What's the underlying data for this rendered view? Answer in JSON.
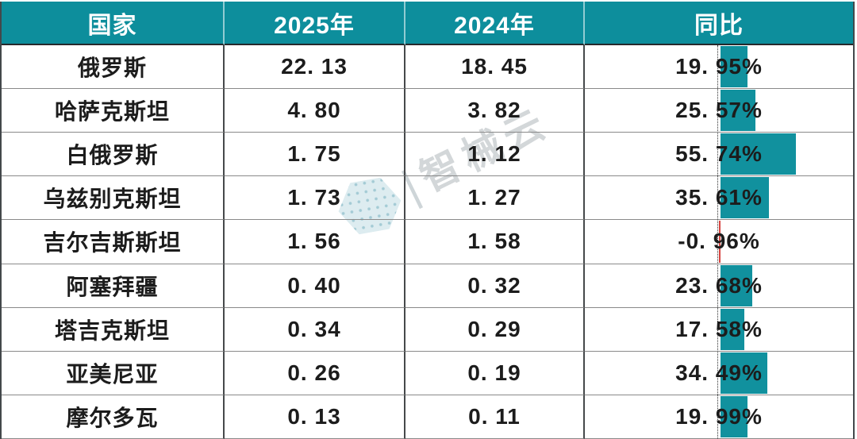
{
  "table": {
    "headers": {
      "country": "国家",
      "y2025": "2025年",
      "y2024": "2024年",
      "yoy": "同比"
    },
    "rows": [
      {
        "country": "俄罗斯",
        "y2025": "22. 13",
        "y2024": "18. 45",
        "yoy": "19. 95%",
        "yoy_value": 19.95
      },
      {
        "country": "哈萨克斯坦",
        "y2025": "4. 80",
        "y2024": "3. 82",
        "yoy": "25. 57%",
        "yoy_value": 25.57
      },
      {
        "country": "白俄罗斯",
        "y2025": "1. 75",
        "y2024": "1. 12",
        "yoy": "55. 74%",
        "yoy_value": 55.74
      },
      {
        "country": "乌兹别克斯坦",
        "y2025": "1. 73",
        "y2024": "1. 27",
        "yoy": "35. 61%",
        "yoy_value": 35.61
      },
      {
        "country": "吉尔吉斯斯坦",
        "y2025": "1. 56",
        "y2024": "1. 58",
        "yoy": "-0. 96%",
        "yoy_value": -0.96
      },
      {
        "country": "阿塞拜疆",
        "y2025": "0. 40",
        "y2024": "0. 32",
        "yoy": "23. 68%",
        "yoy_value": 23.68
      },
      {
        "country": "塔吉克斯坦",
        "y2025": "0. 34",
        "y2024": "0. 29",
        "yoy": "17. 58%",
        "yoy_value": 17.58
      },
      {
        "country": "亚美尼亚",
        "y2025": "0. 26",
        "y2024": "0. 19",
        "yoy": "34. 49%",
        "yoy_value": 34.49
      },
      {
        "country": "摩尔多瓦",
        "y2025": "0. 13",
        "y2024": "0. 11",
        "yoy": "19. 99%",
        "yoy_value": 19.99
      }
    ]
  },
  "watermark": {
    "logo": "hexagon-dots-logo",
    "separator": "|",
    "text": "智械云"
  },
  "colors": {
    "header_bg": "#0D8E9C",
    "header_text": "#FFFFFF",
    "bar_positive": "#11919E",
    "bar_negative": "#D64541",
    "body_text": "#1C1C1C",
    "grid_horizontal": "#8A8A8A",
    "grid_vertical": "#46494B"
  },
  "chart_data": {
    "type": "table",
    "title": "",
    "columns": [
      "国家",
      "2025年",
      "2024年",
      "同比"
    ],
    "rows": [
      [
        "俄罗斯",
        22.13,
        18.45,
        "19.95%"
      ],
      [
        "哈萨克斯坦",
        4.8,
        3.82,
        "25.57%"
      ],
      [
        "白俄罗斯",
        1.75,
        1.12,
        "55.74%"
      ],
      [
        "乌兹别克斯坦",
        1.73,
        1.27,
        "35.61%"
      ],
      [
        "吉尔吉斯斯坦",
        1.56,
        1.58,
        "-0.96%"
      ],
      [
        "阿塞拜疆",
        0.4,
        0.32,
        "23.68%"
      ],
      [
        "塔吉克斯坦",
        0.34,
        0.29,
        "17.58%"
      ],
      [
        "亚美尼亚",
        0.26,
        0.19,
        "34.49%"
      ],
      [
        "摩尔多瓦",
        0.13,
        0.11,
        "19.99%"
      ]
    ],
    "yoy_databar": {
      "style": "excel-data-bar",
      "axis_position": "cell-midpoint",
      "scale_max_percent": 100,
      "positive_color": "#11919E",
      "values": [
        19.95,
        25.57,
        55.74,
        35.61,
        -0.96,
        23.68,
        17.58,
        34.49,
        19.99
      ]
    }
  }
}
